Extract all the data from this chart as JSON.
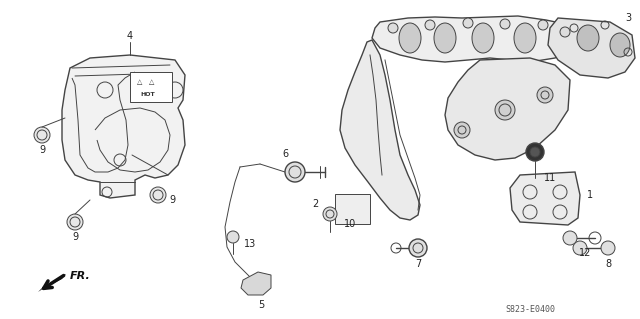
{
  "diagram_code": "S823-E0400",
  "bg_color": "#ffffff",
  "line_color": "#444444",
  "figsize": [
    6.4,
    3.19
  ],
  "dpi": 100
}
